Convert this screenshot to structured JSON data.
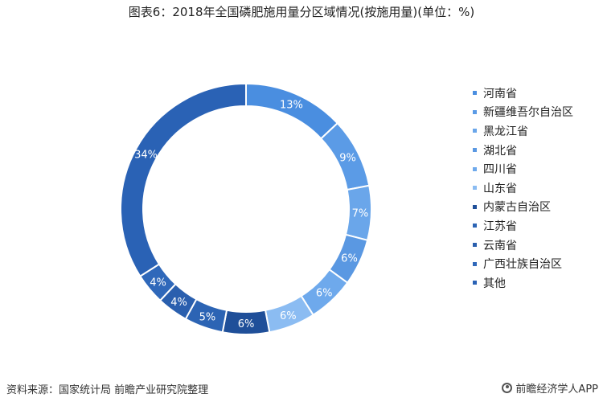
{
  "chart_data": {
    "type": "pie",
    "donut": true,
    "title": "图表6：2018年全国磷肥施用量分区域情况(按施用量)(单位：%)",
    "categories": [
      "河南省",
      "新疆维吾尔自治区",
      "黑龙江省",
      "湖北省",
      "四川省",
      "山东省",
      "内蒙古自治区",
      "江苏省",
      "云南省",
      "广西壮族自治区",
      "其他"
    ],
    "values": [
      13,
      9,
      7,
      6,
      6,
      6,
      6,
      5,
      4,
      4,
      34
    ],
    "labels": [
      "13%",
      "9%",
      "7%",
      "6%",
      "6%",
      "6%",
      "6%",
      "5%",
      "4%",
      "4%",
      "34%"
    ],
    "colors": [
      "#4a8ee0",
      "#5b9be6",
      "#6aa6ea",
      "#5a98e2",
      "#6ea9ec",
      "#8bbcf2",
      "#1f4f99",
      "#2c64b4",
      "#2a5fae",
      "#2f68ba",
      "#2a62b5"
    ],
    "legend_position": "right",
    "start_angle_deg": 0,
    "direction": "clockwise"
  },
  "footer": {
    "source": "资料来源：国家统计局 前瞻产业研究院整理",
    "brand": "前瞻经济学人APP"
  }
}
